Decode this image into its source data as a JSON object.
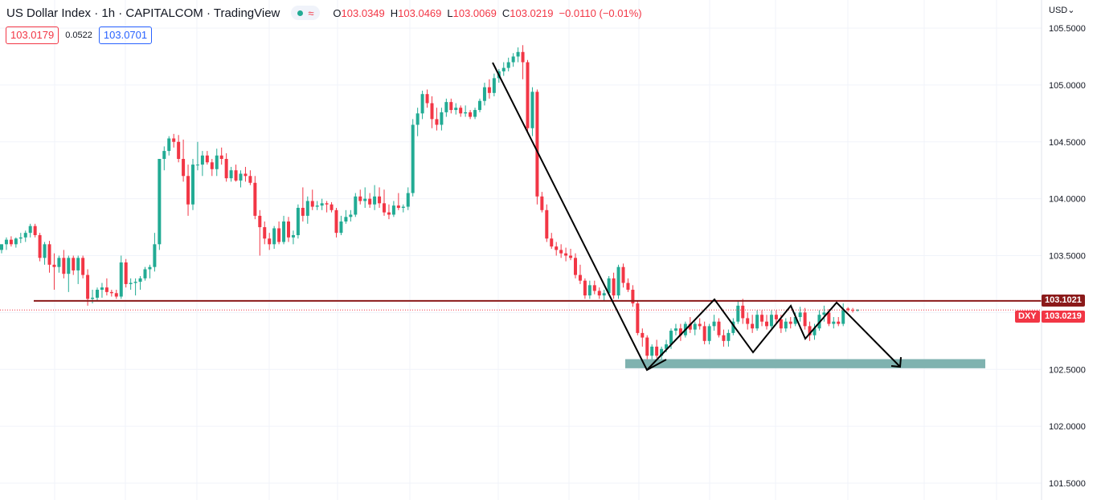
{
  "header": {
    "title": "US Dollar Index · 1h · CAPITALCOM · TradingView",
    "wave_glyph": "≈",
    "ohlc": [
      {
        "key": "O",
        "value": "103.0349"
      },
      {
        "key": "H",
        "value": "103.0469"
      },
      {
        "key": "L",
        "value": "103.0069"
      },
      {
        "key": "C",
        "value": "103.0219"
      }
    ],
    "change": "−0.0110 (−0.01%)"
  },
  "quote": {
    "sell": "103.0179",
    "spread": "0.0522",
    "buy": "103.0701"
  },
  "currency_label": "USD⌄",
  "price_tags": {
    "resistance": "103.1021",
    "symbol": "DXY",
    "last": "103.0219"
  },
  "colors": {
    "up": "#22ab94",
    "down": "#f23645",
    "resistance_line": "#8b1a1a",
    "support_zone": "#7fb2b0",
    "drawing": "#000000"
  },
  "chart_data": {
    "type": "candlestick",
    "title": "US Dollar Index · 1h · CAPITALCOM",
    "y_ticks": [
      105.5,
      105.0,
      104.5,
      104.0,
      103.5,
      102.5,
      102.0,
      101.5
    ],
    "y_tick_labels": [
      "105.5000",
      "105.0000",
      "104.5000",
      "104.0000",
      "103.5000",
      "102.5000",
      "102.0000",
      "101.5000"
    ],
    "ylim": [
      101.4,
      105.72
    ],
    "grid": true,
    "candle_count": 180,
    "candles": [
      [
        103.55,
        103.6,
        103.52,
        103.6
      ],
      [
        103.6,
        103.66,
        103.55,
        103.64
      ],
      [
        103.64,
        103.67,
        103.58,
        103.6
      ],
      [
        103.6,
        103.66,
        103.57,
        103.65
      ],
      [
        103.65,
        103.7,
        103.61,
        103.66
      ],
      [
        103.66,
        103.72,
        103.62,
        103.7
      ],
      [
        103.7,
        103.78,
        103.66,
        103.76
      ],
      [
        103.76,
        103.78,
        103.66,
        103.68
      ],
      [
        103.68,
        103.7,
        103.45,
        103.48
      ],
      [
        103.48,
        103.62,
        103.42,
        103.6
      ],
      [
        103.6,
        103.63,
        103.35,
        103.42
      ],
      [
        103.42,
        103.52,
        103.2,
        103.4
      ],
      [
        103.4,
        103.5,
        103.35,
        103.48
      ],
      [
        103.48,
        103.55,
        103.3,
        103.34
      ],
      [
        103.34,
        103.5,
        103.18,
        103.48
      ],
      [
        103.48,
        103.5,
        103.33,
        103.37
      ],
      [
        103.37,
        103.5,
        103.25,
        103.48
      ],
      [
        103.48,
        103.5,
        103.3,
        103.33
      ],
      [
        103.33,
        103.38,
        103.06,
        103.12
      ],
      [
        103.12,
        103.2,
        103.08,
        103.13
      ],
      [
        103.13,
        103.22,
        103.1,
        103.2
      ],
      [
        103.2,
        103.26,
        103.13,
        103.22
      ],
      [
        103.22,
        103.3,
        103.15,
        103.18
      ],
      [
        103.18,
        103.2,
        103.14,
        103.17
      ],
      [
        103.17,
        103.2,
        103.12,
        103.14
      ],
      [
        103.14,
        103.5,
        103.12,
        103.44
      ],
      [
        103.44,
        103.47,
        103.22,
        103.25
      ],
      [
        103.25,
        103.3,
        103.2,
        103.26
      ],
      [
        103.26,
        103.3,
        103.15,
        103.27
      ],
      [
        103.27,
        103.32,
        103.2,
        103.3
      ],
      [
        103.3,
        103.4,
        103.28,
        103.38
      ],
      [
        103.38,
        103.42,
        103.3,
        103.4
      ],
      [
        103.4,
        103.7,
        103.36,
        103.6
      ],
      [
        103.6,
        104.35,
        103.55,
        104.35
      ],
      [
        104.35,
        104.46,
        104.25,
        104.42
      ],
      [
        104.42,
        104.55,
        104.38,
        104.53
      ],
      [
        104.53,
        104.57,
        104.45,
        104.5
      ],
      [
        104.5,
        104.56,
        104.32,
        104.35
      ],
      [
        104.35,
        104.52,
        104.15,
        104.2
      ],
      [
        104.2,
        104.3,
        103.85,
        103.95
      ],
      [
        103.95,
        104.35,
        103.9,
        104.3
      ],
      [
        104.3,
        104.5,
        104.25,
        104.3
      ],
      [
        104.3,
        104.42,
        104.2,
        104.38
      ],
      [
        104.38,
        104.42,
        104.3,
        104.32
      ],
      [
        104.32,
        104.35,
        104.2,
        104.26
      ],
      [
        104.26,
        104.44,
        104.2,
        104.38
      ],
      [
        104.38,
        104.45,
        104.3,
        104.35
      ],
      [
        104.35,
        104.4,
        104.15,
        104.18
      ],
      [
        104.18,
        104.28,
        104.15,
        104.25
      ],
      [
        104.25,
        104.3,
        104.15,
        104.16
      ],
      [
        104.16,
        104.25,
        104.1,
        104.22
      ],
      [
        104.22,
        104.28,
        104.15,
        104.2
      ],
      [
        104.2,
        104.25,
        104.12,
        104.14
      ],
      [
        104.14,
        104.2,
        103.82,
        103.85
      ],
      [
        103.85,
        103.9,
        103.5,
        103.75
      ],
      [
        103.75,
        103.8,
        103.6,
        103.65
      ],
      [
        103.65,
        103.7,
        103.55,
        103.6
      ],
      [
        103.6,
        103.76,
        103.56,
        103.74
      ],
      [
        103.74,
        103.8,
        103.6,
        103.62
      ],
      [
        103.62,
        103.85,
        103.6,
        103.8
      ],
      [
        103.8,
        103.84,
        103.62,
        103.66
      ],
      [
        103.66,
        103.72,
        103.6,
        103.68
      ],
      [
        103.68,
        103.95,
        103.65,
        103.92
      ],
      [
        103.92,
        104.1,
        103.8,
        103.85
      ],
      [
        103.85,
        104.02,
        103.78,
        103.98
      ],
      [
        103.98,
        104.08,
        103.9,
        103.93
      ],
      [
        103.93,
        103.98,
        103.9,
        103.94
      ],
      [
        103.94,
        104.0,
        103.9,
        103.96
      ],
      [
        103.96,
        103.98,
        103.88,
        103.95
      ],
      [
        103.95,
        103.97,
        103.88,
        103.9
      ],
      [
        103.9,
        103.92,
        103.66,
        103.7
      ],
      [
        103.7,
        103.85,
        103.68,
        103.8
      ],
      [
        103.8,
        103.9,
        103.78,
        103.84
      ],
      [
        103.84,
        103.9,
        103.8,
        103.86
      ],
      [
        103.86,
        104.05,
        103.84,
        104.02
      ],
      [
        104.02,
        104.08,
        103.95,
        103.98
      ],
      [
        103.98,
        104.1,
        103.92,
        104.0
      ],
      [
        104.0,
        104.05,
        103.92,
        103.95
      ],
      [
        103.95,
        104.12,
        103.9,
        104.02
      ],
      [
        104.02,
        104.1,
        103.92,
        103.96
      ],
      [
        103.96,
        104.08,
        103.85,
        103.88
      ],
      [
        103.88,
        103.95,
        103.82,
        103.86
      ],
      [
        103.86,
        103.98,
        103.84,
        103.94
      ],
      [
        103.94,
        104.05,
        103.9,
        103.92
      ],
      [
        103.92,
        103.95,
        103.88,
        103.93
      ],
      [
        103.93,
        104.1,
        103.9,
        104.05
      ],
      [
        104.05,
        104.7,
        104.02,
        104.65
      ],
      [
        104.65,
        104.8,
        104.55,
        104.75
      ],
      [
        104.75,
        104.95,
        104.7,
        104.92
      ],
      [
        104.92,
        104.96,
        104.8,
        104.84
      ],
      [
        104.84,
        104.9,
        104.62,
        104.7
      ],
      [
        104.7,
        104.8,
        104.6,
        104.65
      ],
      [
        104.65,
        104.8,
        104.6,
        104.76
      ],
      [
        104.76,
        104.88,
        104.72,
        104.85
      ],
      [
        104.85,
        104.88,
        104.75,
        104.78
      ],
      [
        104.78,
        104.84,
        104.74,
        104.8
      ],
      [
        104.8,
        104.82,
        104.72,
        104.75
      ],
      [
        104.75,
        104.82,
        104.72,
        104.76
      ],
      [
        104.76,
        104.78,
        104.7,
        104.72
      ],
      [
        104.72,
        104.8,
        104.7,
        104.78
      ],
      [
        104.78,
        104.88,
        104.76,
        104.86
      ],
      [
        104.86,
        105.02,
        104.82,
        104.98
      ],
      [
        104.98,
        105.05,
        104.88,
        104.93
      ],
      [
        104.93,
        105.1,
        104.9,
        105.06
      ],
      [
        105.06,
        105.14,
        105.02,
        105.12
      ],
      [
        105.12,
        105.2,
        105.08,
        105.15
      ],
      [
        105.15,
        105.24,
        105.12,
        105.2
      ],
      [
        105.2,
        105.28,
        105.16,
        105.25
      ],
      [
        105.25,
        105.33,
        105.2,
        105.29
      ],
      [
        105.29,
        105.35,
        105.05,
        105.2
      ],
      [
        105.2,
        105.22,
        104.58,
        104.62
      ],
      [
        104.62,
        104.98,
        104.55,
        104.94
      ],
      [
        104.94,
        104.96,
        103.95,
        104.02
      ],
      [
        104.02,
        104.06,
        103.88,
        103.9
      ],
      [
        103.9,
        103.95,
        103.62,
        103.65
      ],
      [
        103.65,
        103.7,
        103.56,
        103.58
      ],
      [
        103.58,
        103.62,
        103.5,
        103.55
      ],
      [
        103.55,
        103.6,
        103.48,
        103.52
      ],
      [
        103.52,
        103.57,
        103.45,
        103.5
      ],
      [
        103.5,
        103.56,
        103.46,
        103.48
      ],
      [
        103.48,
        103.52,
        103.3,
        103.33
      ],
      [
        103.33,
        103.42,
        103.25,
        103.28
      ],
      [
        103.28,
        103.3,
        103.12,
        103.15
      ],
      [
        103.15,
        103.28,
        103.12,
        103.24
      ],
      [
        103.24,
        103.28,
        103.16,
        103.19
      ],
      [
        103.19,
        103.22,
        103.12,
        103.15
      ],
      [
        103.15,
        103.2,
        103.1,
        103.17
      ],
      [
        103.17,
        103.32,
        103.15,
        103.3
      ],
      [
        103.3,
        103.35,
        103.12,
        103.15
      ],
      [
        103.15,
        103.42,
        103.12,
        103.4
      ],
      [
        103.4,
        103.43,
        103.22,
        103.26
      ],
      [
        103.26,
        103.3,
        103.18,
        103.2
      ],
      [
        103.2,
        103.24,
        103.05,
        103.08
      ],
      [
        103.08,
        103.1,
        102.8,
        102.82
      ],
      [
        102.82,
        102.86,
        102.7,
        102.78
      ],
      [
        102.78,
        102.8,
        102.58,
        102.62
      ],
      [
        102.62,
        102.72,
        102.57,
        102.7
      ],
      [
        102.7,
        102.76,
        102.6,
        102.62
      ],
      [
        102.62,
        102.7,
        102.58,
        102.68
      ],
      [
        102.68,
        102.76,
        102.65,
        102.72
      ],
      [
        102.72,
        102.86,
        102.68,
        102.84
      ],
      [
        102.84,
        102.9,
        102.8,
        102.86
      ],
      [
        102.86,
        102.9,
        102.75,
        102.8
      ],
      [
        102.8,
        102.92,
        102.78,
        102.9
      ],
      [
        102.9,
        102.96,
        102.82,
        102.85
      ],
      [
        102.85,
        102.92,
        102.8,
        102.9
      ],
      [
        102.9,
        102.95,
        102.85,
        102.88
      ],
      [
        102.88,
        102.92,
        102.72,
        102.75
      ],
      [
        102.75,
        102.9,
        102.72,
        102.88
      ],
      [
        102.88,
        102.98,
        102.84,
        102.92
      ],
      [
        102.92,
        102.95,
        102.78,
        102.8
      ],
      [
        102.8,
        102.85,
        102.7,
        102.75
      ],
      [
        102.75,
        102.85,
        102.7,
        102.82
      ],
      [
        102.82,
        102.95,
        102.8,
        102.92
      ],
      [
        102.92,
        103.1,
        102.9,
        103.06
      ],
      [
        103.06,
        103.12,
        102.9,
        102.95
      ],
      [
        102.95,
        103.0,
        102.85,
        102.9
      ],
      [
        102.9,
        102.98,
        102.82,
        102.86
      ],
      [
        102.86,
        103.02,
        102.84,
        102.98
      ],
      [
        102.98,
        103.02,
        102.88,
        102.92
      ],
      [
        102.92,
        102.98,
        102.85,
        102.88
      ],
      [
        102.88,
        103.02,
        102.86,
        102.98
      ],
      [
        102.98,
        103.02,
        102.9,
        102.94
      ],
      [
        102.94,
        102.98,
        102.82,
        102.86
      ],
      [
        102.86,
        102.95,
        102.83,
        102.92
      ],
      [
        102.92,
        102.96,
        102.86,
        102.9
      ],
      [
        102.9,
        103.0,
        102.88,
        102.96
      ],
      [
        102.96,
        103.05,
        102.92,
        103.0
      ],
      [
        103.0,
        103.04,
        102.85,
        102.88
      ],
      [
        102.88,
        102.92,
        102.75,
        102.8
      ],
      [
        102.8,
        102.9,
        102.76,
        102.86
      ],
      [
        102.86,
        103.02,
        102.84,
        102.98
      ],
      [
        102.98,
        103.06,
        102.92,
        103.0
      ],
      [
        103.0,
        103.03,
        102.88,
        102.9
      ],
      [
        102.9,
        102.96,
        102.86,
        102.92
      ],
      [
        102.92,
        102.96,
        102.88,
        102.9
      ],
      [
        102.9,
        103.08,
        102.88,
        103.02
      ],
      [
        103.0349,
        103.0469,
        103.0069,
        103.0219
      ],
      [
        103.0219,
        103.04,
        103.0,
        103.02
      ],
      [
        103.02,
        103.03,
        103.01,
        103.0219
      ]
    ],
    "resistance_level": 103.1021,
    "last_price": 103.0219,
    "support_zone": [
      102.51,
      102.59
    ],
    "annotations": [
      {
        "type": "polyline",
        "name": "down-trend-line",
        "points": [
          [
            0,
            105.2
          ],
          [
            1,
            102.5
          ],
          [
            2,
            102.6
          ]
        ]
      },
      {
        "type": "polyline",
        "name": "range-zigzag",
        "points": [
          [
            0,
            102.5
          ],
          [
            1,
            103.1
          ],
          [
            2,
            102.65
          ],
          [
            3,
            103.05
          ],
          [
            4,
            102.76
          ],
          [
            5,
            103.06
          ],
          [
            6,
            102.5
          ]
        ]
      }
    ]
  }
}
